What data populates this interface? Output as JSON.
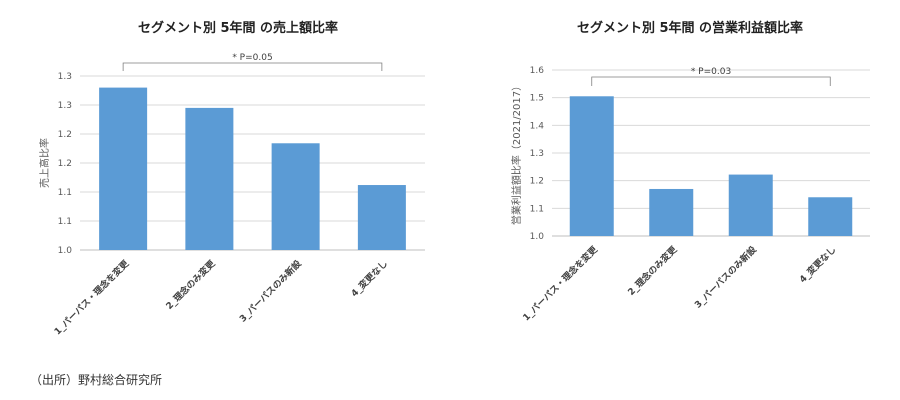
{
  "source": "（出所）野村総合研究所",
  "chart_data": [
    {
      "type": "bar",
      "title": "セグメント別 5年間 の売上額比率",
      "ylabel": "売上高比率",
      "xlabel": "",
      "categories": [
        "1_パーパス・理念を変更",
        "2_理念のみ変更",
        "3_パーパスのみ新設",
        "4_変更なし"
      ],
      "values": [
        1.28,
        1.245,
        1.184,
        1.112
      ],
      "ylim": [
        1.0,
        1.3
      ],
      "yticks": [
        1.0,
        1.05,
        1.1,
        1.15,
        1.2,
        1.25,
        1.3
      ],
      "ytick_labels": [
        "1.0",
        "1.1",
        "1.1",
        "1.2",
        "1.2",
        "1.3",
        "1.3"
      ],
      "grid": true,
      "legend": "none",
      "annotation": {
        "text": "* P=0.05",
        "from_category": 0,
        "to_category": 3
      }
    },
    {
      "type": "bar",
      "title": "セグメント別 5年間 の営業利益額比率",
      "ylabel": "営業利益額比率（2021/2017）",
      "xlabel": "",
      "categories": [
        "1_パーパス・理念を変更",
        "2_理念のみ変更",
        "3_パーパスのみ新設",
        "4_変更なし"
      ],
      "values": [
        1.505,
        1.17,
        1.222,
        1.14
      ],
      "ylim": [
        1.0,
        1.6
      ],
      "yticks": [
        1.0,
        1.1,
        1.2,
        1.3,
        1.4,
        1.5,
        1.6
      ],
      "ytick_labels": [
        "1.0",
        "1.1",
        "1.2",
        "1.3",
        "1.4",
        "1.5",
        "1.6"
      ],
      "grid": true,
      "legend": "none",
      "annotation": {
        "text": "* P=0.03",
        "from_category": 0,
        "to_category": 3
      }
    }
  ]
}
